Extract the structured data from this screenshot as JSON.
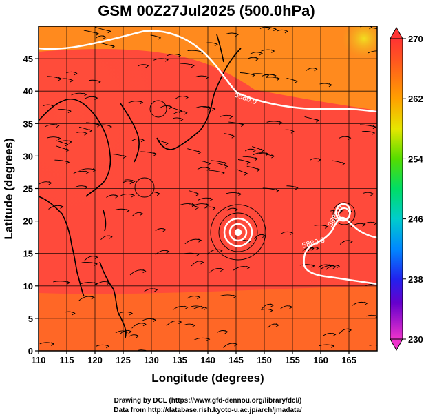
{
  "title": "GSM 00Z27Jul2025 (500.0hPa)",
  "xlabel": "Longitude (degrees)",
  "ylabel": "Latitude  (degrees)",
  "x_axis": {
    "min": 110,
    "max": 170,
    "ticks": [
      110,
      115,
      120,
      125,
      130,
      135,
      140,
      145,
      150,
      155,
      160,
      165
    ]
  },
  "y_axis": {
    "min": 0,
    "max": 50,
    "ticks": [
      0,
      5,
      10,
      15,
      20,
      25,
      30,
      35,
      40,
      45
    ]
  },
  "colorbar": {
    "min": 230,
    "max": 270,
    "ticks": [
      270,
      262,
      254,
      246,
      238,
      230
    ]
  },
  "contours": [
    {
      "label": "5880.0",
      "level": 5880
    },
    {
      "label": "5880.0",
      "level": 5880
    },
    {
      "label": "5880.0",
      "level": 5880
    }
  ],
  "credits": {
    "line1": "Drawing by DCL (https://www.gfd-dennou.org/library/dcl/)",
    "line2": "Data from http://database.rish.kyoto-u.ac.jp/arch/jmadata/"
  },
  "chart_data": {
    "type": "heatmap",
    "variable": "temperature (K) with wind streamlines",
    "level": "500.0hPa",
    "xlim": [
      110,
      170
    ],
    "ylim": [
      0,
      50
    ],
    "clim": [
      230,
      270
    ],
    "features": [
      {
        "kind": "cyclone",
        "lon": 145,
        "lat": 20
      },
      {
        "kind": "cyclone",
        "lon": 163,
        "lat": 23
      }
    ]
  }
}
